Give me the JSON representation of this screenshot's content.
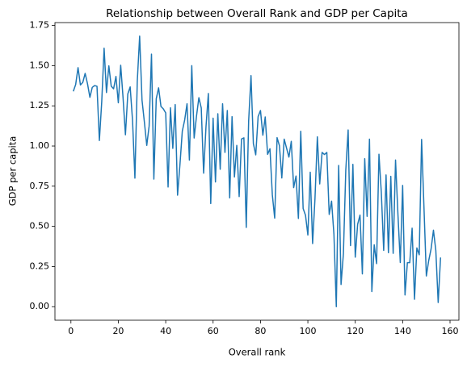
{
  "chart_data": {
    "type": "line",
    "title": "Relationship between Overall Rank and GDP per Capita",
    "x_label": "Overall rank",
    "y_label": "GDP per capita",
    "x": [
      1,
      2,
      3,
      4,
      5,
      6,
      7,
      8,
      9,
      10,
      11,
      12,
      13,
      14,
      15,
      16,
      17,
      18,
      19,
      20,
      21,
      22,
      23,
      24,
      25,
      26,
      27,
      28,
      29,
      30,
      31,
      32,
      33,
      34,
      35,
      36,
      37,
      38,
      39,
      40,
      41,
      42,
      43,
      44,
      45,
      46,
      47,
      48,
      49,
      50,
      51,
      52,
      53,
      54,
      55,
      56,
      57,
      58,
      59,
      60,
      61,
      62,
      63,
      64,
      65,
      66,
      67,
      68,
      69,
      70,
      71,
      72,
      73,
      74,
      75,
      76,
      77,
      78,
      79,
      80,
      81,
      82,
      83,
      84,
      85,
      86,
      87,
      88,
      89,
      90,
      91,
      92,
      93,
      94,
      95,
      96,
      97,
      98,
      99,
      100,
      101,
      102,
      103,
      104,
      105,
      106,
      107,
      108,
      109,
      110,
      111,
      112,
      113,
      114,
      115,
      116,
      117,
      118,
      119,
      120,
      121,
      122,
      123,
      124,
      125,
      126,
      127,
      128,
      129,
      130,
      131,
      132,
      133,
      134,
      135,
      136,
      137,
      138,
      139,
      140,
      141,
      142,
      143,
      144,
      145,
      146,
      147,
      148,
      149,
      150,
      151,
      152,
      153,
      154,
      155,
      156
    ],
    "series": [
      {
        "name": "GDP per capita",
        "color": "#1f77b4",
        "values": [
          1.34,
          1.383,
          1.488,
          1.38,
          1.396,
          1.452,
          1.387,
          1.303,
          1.365,
          1.376,
          1.372,
          1.034,
          1.276,
          1.609,
          1.333,
          1.499,
          1.373,
          1.356,
          1.433,
          1.269,
          1.503,
          1.3,
          1.07,
          1.324,
          1.368,
          1.159,
          0.8,
          1.403,
          1.684,
          1.286,
          1.149,
          1.004,
          1.124,
          1.572,
          0.794,
          1.294,
          1.362,
          1.246,
          1.231,
          1.206,
          0.745,
          1.238,
          0.985,
          1.258,
          0.694,
          0.882,
          1.092,
          1.162,
          1.263,
          0.912,
          1.5,
          1.05,
          1.187,
          1.301,
          1.237,
          0.831,
          1.12,
          1.327,
          0.642,
          1.173,
          0.776,
          1.201,
          0.855,
          1.263,
          0.96,
          1.221,
          0.677,
          1.183,
          0.807,
          1.004,
          0.685,
          1.044,
          1.051,
          0.493,
          1.155,
          1.438,
          1.015,
          0.945,
          1.183,
          1.221,
          1.067,
          1.181,
          0.948,
          0.983,
          0.696,
          0.551,
          1.052,
          1.002,
          0.801,
          1.043,
          0.987,
          0.931,
          1.029,
          0.741,
          0.813,
          0.549,
          1.092,
          0.611,
          0.569,
          0.446,
          0.837,
          0.393,
          0.673,
          1.057,
          0.764,
          0.96,
          0.947,
          0.96,
          0.574,
          0.657,
          0.45,
          0,
          0.879,
          0.138,
          0.331,
          0.85,
          1.1,
          0.38,
          0.886,
          0.308,
          0.512,
          0.57,
          0.204,
          0.921,
          0.562,
          1.043,
          0.094,
          0.385,
          0.268,
          0.949,
          0.71,
          0.35,
          0.82,
          0.336,
          0.811,
          0.332,
          0.913,
          0.578,
          0.275,
          0.755,
          0.073,
          0.274,
          0.274,
          0.489,
          0.046,
          0.366,
          0.323,
          1.041,
          0.619,
          0.191,
          0.287,
          0.359,
          0.476,
          0.35,
          0.026,
          0.306
        ]
      }
    ],
    "xlim": [
      -6.75,
      163.75
    ],
    "xticks": [
      0,
      20,
      40,
      60,
      80,
      100,
      120,
      140,
      160
    ],
    "ylim": [
      -0.0842,
      1.7682
    ],
    "yticks": [
      {
        "value": 0,
        "label": "0.00"
      },
      {
        "value": 0.25,
        "label": "0.25"
      },
      {
        "value": 0.5,
        "label": "0.50"
      },
      {
        "value": 0.75,
        "label": "0.75"
      },
      {
        "value": 1,
        "label": "1.00"
      },
      {
        "value": 1.25,
        "label": "1.25"
      },
      {
        "value": 1.5,
        "label": "1.50"
      },
      {
        "value": 1.75,
        "label": "1.75"
      }
    ],
    "grid": false
  }
}
